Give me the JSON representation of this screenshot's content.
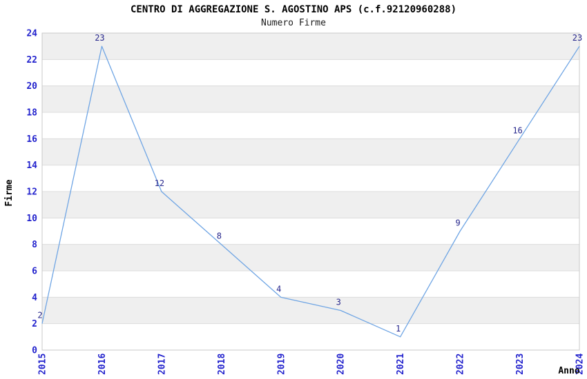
{
  "chart_data": {
    "type": "line",
    "title": "CENTRO DI AGGREGAZIONE S. AGOSTINO APS (c.f.92120960288)",
    "subtitle": "Numero Firme",
    "xlabel": "Anno",
    "ylabel": "Firme",
    "categories": [
      "2015",
      "2016",
      "2017",
      "2018",
      "2019",
      "2020",
      "2021",
      "2022",
      "2023",
      "2024"
    ],
    "series": [
      {
        "name": "Numero Firme",
        "values": [
          2,
          23,
          12,
          8,
          4,
          3,
          1,
          9,
          16,
          23
        ]
      }
    ],
    "point_labels": [
      "2",
      "23",
      "12",
      "8",
      "4",
      "3",
      "1",
      "9",
      "16",
      "23"
    ],
    "ylim": [
      0,
      24
    ],
    "ytick_step": 2,
    "grid": true,
    "legend": "none",
    "band_shading": true,
    "colors": {
      "line": "#6FA5E4",
      "tick_label": "#2323CD",
      "data_label": "#26268C",
      "band": "#EFEFEF",
      "grid": "#DCDCDC",
      "border": "#C8C8C8",
      "title_text": "#000000",
      "background": "#FFFFFF"
    }
  }
}
